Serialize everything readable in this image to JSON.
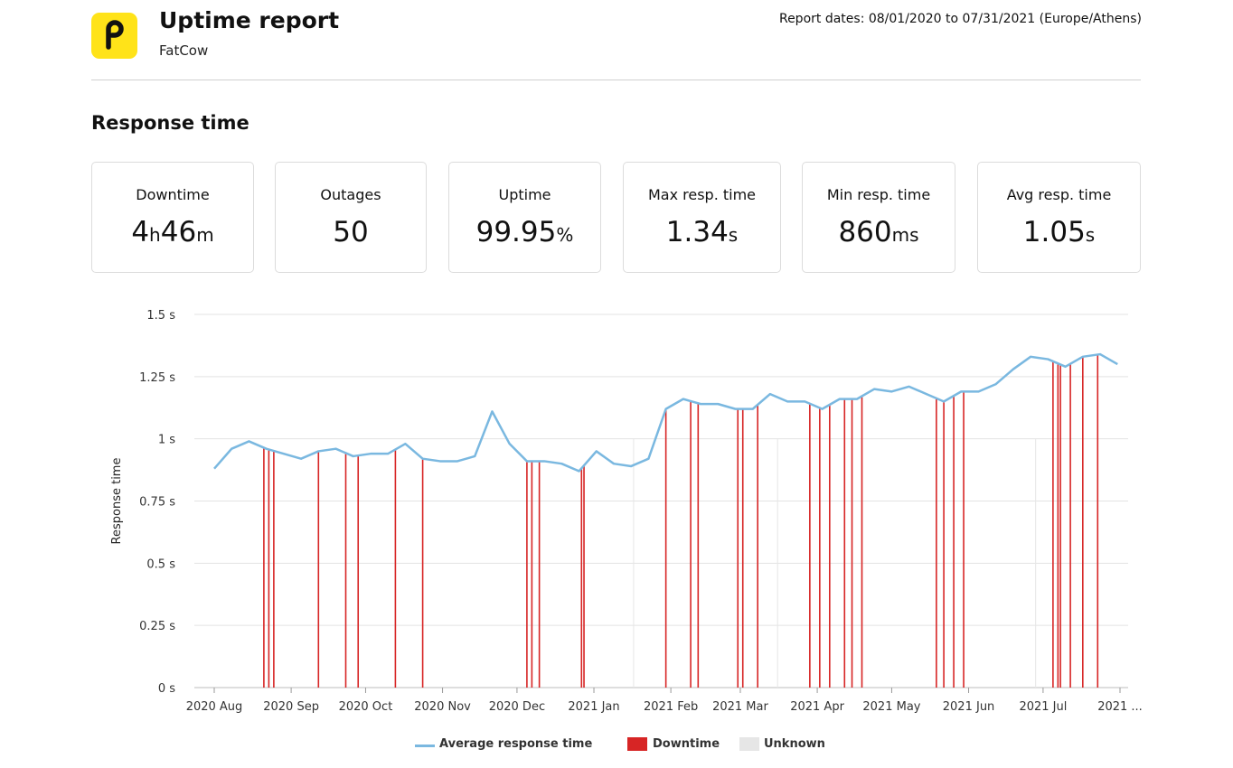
{
  "header": {
    "title": "Uptime report",
    "subtitle": "FatCow",
    "report_dates": "Report dates: 08/01/2020 to 07/31/2021 (Europe/Athens)",
    "logo_icon": "pingdom-logo-icon"
  },
  "section_title": "Response time",
  "stats": [
    {
      "label": "Downtime",
      "value_parts": [
        "4",
        "h",
        "46",
        "m"
      ]
    },
    {
      "label": "Outages",
      "value": "50"
    },
    {
      "label": "Uptime",
      "value": "99.95",
      "unit": "%"
    },
    {
      "label": "Max resp. time",
      "value": "1.34",
      "unit": "s"
    },
    {
      "label": "Min resp. time",
      "value": "860",
      "unit": "ms"
    },
    {
      "label": "Avg resp. time",
      "value": "1.05",
      "unit": "s"
    }
  ],
  "legend": {
    "line": "Average response time",
    "downtime": "Downtime",
    "unknown": "Unknown"
  },
  "colors": {
    "logo_bg": "#ffe319",
    "line": "#7ab8e0",
    "downtime": "#d72525",
    "unknown": "#e6e6e6"
  },
  "chart_data": {
    "type": "line",
    "ylabel": "Response time",
    "ylim": [
      0,
      1.5
    ],
    "y_ticks": [
      "0 s",
      "0.25 s",
      "0.5 s",
      "0.75 s",
      "1 s",
      "1.25 s",
      "1.5 s"
    ],
    "x_ticks": [
      "2020 Aug",
      "2020 Sep",
      "2020 Oct",
      "2020 Nov",
      "2020 Dec",
      "2021 Jan",
      "2021 Feb",
      "2021 Mar",
      "2021 Apr",
      "2021 May",
      "2021 Jun",
      "2021 Jul",
      "2021 ..."
    ],
    "x_tick_dates": [
      "2020-08-01",
      "2020-09-01",
      "2020-10-01",
      "2020-11-01",
      "2020-12-01",
      "2021-01-01",
      "2021-02-01",
      "2021-03-01",
      "2021-04-01",
      "2021-05-01",
      "2021-06-01",
      "2021-07-01",
      "2021-08-01"
    ],
    "grid": true,
    "legend_position": "bottom",
    "series": [
      {
        "name": "Average response time",
        "points": [
          [
            "2020-08-01",
            0.88
          ],
          [
            "2020-08-08",
            0.96
          ],
          [
            "2020-08-15",
            0.99
          ],
          [
            "2020-08-22",
            0.96
          ],
          [
            "2020-08-29",
            0.94
          ],
          [
            "2020-09-05",
            0.92
          ],
          [
            "2020-09-12",
            0.95
          ],
          [
            "2020-09-19",
            0.96
          ],
          [
            "2020-09-26",
            0.93
          ],
          [
            "2020-10-03",
            0.94
          ],
          [
            "2020-10-10",
            0.94
          ],
          [
            "2020-10-17",
            0.98
          ],
          [
            "2020-10-24",
            0.92
          ],
          [
            "2020-10-31",
            0.91
          ],
          [
            "2020-11-07",
            0.91
          ],
          [
            "2020-11-14",
            0.93
          ],
          [
            "2020-11-21",
            1.11
          ],
          [
            "2020-11-28",
            0.98
          ],
          [
            "2020-12-05",
            0.91
          ],
          [
            "2020-12-12",
            0.91
          ],
          [
            "2020-12-19",
            0.9
          ],
          [
            "2020-12-26",
            0.87
          ],
          [
            "2021-01-02",
            0.95
          ],
          [
            "2021-01-09",
            0.9
          ],
          [
            "2021-01-16",
            0.89
          ],
          [
            "2021-01-23",
            0.92
          ],
          [
            "2021-01-30",
            1.12
          ],
          [
            "2021-02-06",
            1.16
          ],
          [
            "2021-02-13",
            1.14
          ],
          [
            "2021-02-20",
            1.14
          ],
          [
            "2021-02-27",
            1.12
          ],
          [
            "2021-03-06",
            1.12
          ],
          [
            "2021-03-13",
            1.18
          ],
          [
            "2021-03-20",
            1.15
          ],
          [
            "2021-03-27",
            1.15
          ],
          [
            "2021-04-03",
            1.12
          ],
          [
            "2021-04-10",
            1.16
          ],
          [
            "2021-04-17",
            1.16
          ],
          [
            "2021-04-24",
            1.2
          ],
          [
            "2021-05-01",
            1.19
          ],
          [
            "2021-05-08",
            1.21
          ],
          [
            "2021-05-15",
            1.18
          ],
          [
            "2021-05-22",
            1.15
          ],
          [
            "2021-05-29",
            1.19
          ],
          [
            "2021-06-05",
            1.19
          ],
          [
            "2021-06-12",
            1.22
          ],
          [
            "2021-06-19",
            1.28
          ],
          [
            "2021-06-26",
            1.33
          ],
          [
            "2021-07-03",
            1.32
          ],
          [
            "2021-07-10",
            1.29
          ],
          [
            "2021-07-17",
            1.33
          ],
          [
            "2021-07-24",
            1.34
          ],
          [
            "2021-07-31",
            1.3
          ]
        ]
      }
    ],
    "downtime_events": [
      "2020-08-21",
      "2020-08-23",
      "2020-08-25",
      "2020-09-12",
      "2020-09-23",
      "2020-09-28",
      "2020-10-13",
      "2020-10-24",
      "2020-12-05",
      "2020-12-07",
      "2020-12-10",
      "2020-12-27",
      "2020-12-28",
      "2021-01-30",
      "2021-02-09",
      "2021-02-12",
      "2021-02-28",
      "2021-03-02",
      "2021-03-08",
      "2021-03-29",
      "2021-04-02",
      "2021-04-06",
      "2021-04-12",
      "2021-04-15",
      "2021-04-19",
      "2021-05-19",
      "2021-05-22",
      "2021-05-26",
      "2021-05-30",
      "2021-07-05",
      "2021-07-07",
      "2021-07-08",
      "2021-07-12",
      "2021-07-17",
      "2021-07-23"
    ],
    "unknown_events": [
      "2021-01-17",
      "2021-03-16",
      "2021-06-28"
    ]
  }
}
